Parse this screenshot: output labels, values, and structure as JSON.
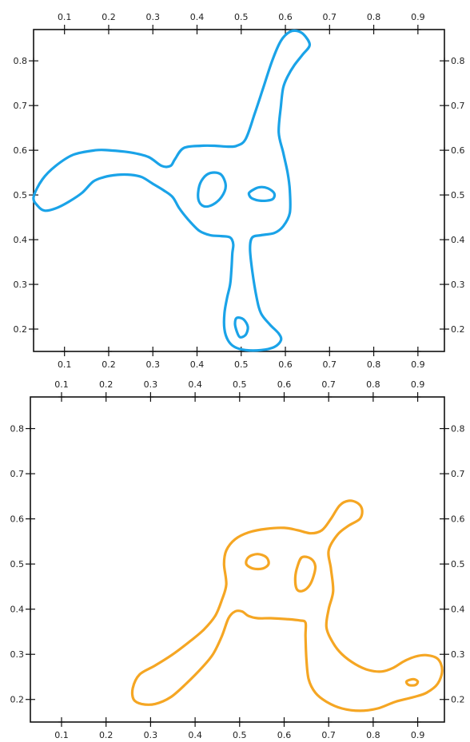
{
  "chart_data": [
    {
      "type": "contour",
      "title": "",
      "xlabel": "",
      "ylabel": "",
      "xlim": [
        0.03,
        0.96
      ],
      "ylim": [
        0.15,
        0.87
      ],
      "x_ticks": [
        "0.1",
        "0.2",
        "0.3",
        "0.4",
        "0.5",
        "0.6",
        "0.7",
        "0.8",
        "0.9"
      ],
      "y_ticks": [
        "0.2",
        "0.3",
        "0.4",
        "0.5",
        "0.6",
        "0.7",
        "0.8"
      ],
      "grid": false,
      "color": "#1aa3e8",
      "series": [
        {
          "kind": "outer",
          "points": [
            [
              0.03,
              0.495
            ],
            [
              0.05,
              0.535
            ],
            [
              0.08,
              0.565
            ],
            [
              0.12,
              0.59
            ],
            [
              0.17,
              0.6
            ],
            [
              0.2,
              0.6
            ],
            [
              0.25,
              0.595
            ],
            [
              0.29,
              0.585
            ],
            [
              0.32,
              0.565
            ],
            [
              0.34,
              0.565
            ],
            [
              0.35,
              0.58
            ],
            [
              0.37,
              0.605
            ],
            [
              0.41,
              0.61
            ],
            [
              0.44,
              0.61
            ],
            [
              0.47,
              0.608
            ],
            [
              0.49,
              0.61
            ],
            [
              0.51,
              0.625
            ],
            [
              0.53,
              0.68
            ],
            [
              0.55,
              0.74
            ],
            [
              0.57,
              0.8
            ],
            [
              0.59,
              0.845
            ],
            [
              0.61,
              0.865
            ],
            [
              0.63,
              0.866
            ],
            [
              0.645,
              0.855
            ],
            [
              0.655,
              0.835
            ],
            [
              0.64,
              0.815
            ],
            [
              0.62,
              0.79
            ],
            [
              0.605,
              0.765
            ],
            [
              0.595,
              0.74
            ],
            [
              0.59,
              0.7
            ],
            [
              0.585,
              0.64
            ],
            [
              0.595,
              0.595
            ],
            [
              0.605,
              0.55
            ],
            [
              0.61,
              0.51
            ],
            [
              0.61,
              0.46
            ],
            [
              0.595,
              0.43
            ],
            [
              0.575,
              0.415
            ],
            [
              0.545,
              0.41
            ],
            [
              0.525,
              0.405
            ],
            [
              0.52,
              0.38
            ],
            [
              0.525,
              0.33
            ],
            [
              0.535,
              0.27
            ],
            [
              0.545,
              0.235
            ],
            [
              0.565,
              0.21
            ],
            [
              0.585,
              0.19
            ],
            [
              0.59,
              0.175
            ],
            [
              0.575,
              0.16
            ],
            [
              0.545,
              0.153
            ],
            [
              0.51,
              0.153
            ],
            [
              0.485,
              0.16
            ],
            [
              0.47,
              0.175
            ],
            [
              0.462,
              0.2
            ],
            [
              0.462,
              0.235
            ],
            [
              0.468,
              0.27
            ],
            [
              0.475,
              0.3
            ],
            [
              0.478,
              0.335
            ],
            [
              0.48,
              0.37
            ],
            [
              0.482,
              0.39
            ],
            [
              0.475,
              0.405
            ],
            [
              0.455,
              0.408
            ],
            [
              0.43,
              0.41
            ],
            [
              0.405,
              0.42
            ],
            [
              0.38,
              0.445
            ],
            [
              0.36,
              0.47
            ],
            [
              0.345,
              0.495
            ],
            [
              0.325,
              0.51
            ],
            [
              0.3,
              0.525
            ],
            [
              0.275,
              0.54
            ],
            [
              0.25,
              0.545
            ],
            [
              0.22,
              0.545
            ],
            [
              0.19,
              0.54
            ],
            [
              0.165,
              0.53
            ],
            [
              0.14,
              0.505
            ],
            [
              0.11,
              0.485
            ],
            [
              0.08,
              0.47
            ],
            [
              0.055,
              0.465
            ],
            [
              0.04,
              0.475
            ],
            [
              0.03,
              0.495
            ]
          ]
        },
        {
          "kind": "hole",
          "points": [
            [
              0.435,
              0.55
            ],
            [
              0.455,
              0.545
            ],
            [
              0.465,
              0.52
            ],
            [
              0.455,
              0.495
            ],
            [
              0.435,
              0.478
            ],
            [
              0.415,
              0.475
            ],
            [
              0.403,
              0.49
            ],
            [
              0.405,
              0.52
            ],
            [
              0.418,
              0.542
            ],
            [
              0.435,
              0.55
            ]
          ]
        },
        {
          "kind": "hole",
          "points": [
            [
              0.52,
              0.507
            ],
            [
              0.54,
              0.517
            ],
            [
              0.56,
              0.515
            ],
            [
              0.575,
              0.503
            ],
            [
              0.57,
              0.49
            ],
            [
              0.545,
              0.487
            ],
            [
              0.525,
              0.492
            ],
            [
              0.518,
              0.5
            ],
            [
              0.52,
              0.507
            ]
          ]
        },
        {
          "kind": "hole",
          "points": [
            [
              0.49,
              0.225
            ],
            [
              0.505,
              0.222
            ],
            [
              0.515,
              0.205
            ],
            [
              0.51,
              0.187
            ],
            [
              0.497,
              0.182
            ],
            [
              0.49,
              0.195
            ],
            [
              0.486,
              0.212
            ],
            [
              0.49,
              0.225
            ]
          ]
        }
      ]
    },
    {
      "type": "contour",
      "title": "",
      "xlabel": "",
      "ylabel": "",
      "xlim": [
        0.03,
        0.96
      ],
      "ylim": [
        0.15,
        0.87
      ],
      "x_ticks": [
        "0.1",
        "0.2",
        "0.3",
        "0.4",
        "0.5",
        "0.6",
        "0.7",
        "0.8",
        "0.9"
      ],
      "y_ticks": [
        "0.2",
        "0.3",
        "0.4",
        "0.5",
        "0.6",
        "0.7",
        "0.8"
      ],
      "grid": false,
      "color": "#f5a623",
      "series": [
        {
          "kind": "outer",
          "points": [
            [
              0.26,
              0.225
            ],
            [
              0.275,
              0.255
            ],
            [
              0.31,
              0.275
            ],
            [
              0.35,
              0.3
            ],
            [
              0.39,
              0.33
            ],
            [
              0.42,
              0.355
            ],
            [
              0.445,
              0.385
            ],
            [
              0.46,
              0.42
            ],
            [
              0.47,
              0.455
            ],
            [
              0.465,
              0.5
            ],
            [
              0.47,
              0.53
            ],
            [
              0.49,
              0.555
            ],
            [
              0.52,
              0.57
            ],
            [
              0.56,
              0.578
            ],
            [
              0.6,
              0.58
            ],
            [
              0.63,
              0.575
            ],
            [
              0.66,
              0.568
            ],
            [
              0.685,
              0.575
            ],
            [
              0.705,
              0.6
            ],
            [
              0.725,
              0.63
            ],
            [
              0.745,
              0.64
            ],
            [
              0.765,
              0.635
            ],
            [
              0.775,
              0.62
            ],
            [
              0.77,
              0.6
            ],
            [
              0.745,
              0.585
            ],
            [
              0.72,
              0.565
            ],
            [
              0.7,
              0.53
            ],
            [
              0.705,
              0.49
            ],
            [
              0.71,
              0.44
            ],
            [
              0.7,
              0.4
            ],
            [
              0.695,
              0.36
            ],
            [
              0.71,
              0.325
            ],
            [
              0.73,
              0.3
            ],
            [
              0.76,
              0.278
            ],
            [
              0.79,
              0.265
            ],
            [
              0.82,
              0.262
            ],
            [
              0.845,
              0.27
            ],
            [
              0.87,
              0.285
            ],
            [
              0.895,
              0.295
            ],
            [
              0.92,
              0.298
            ],
            [
              0.945,
              0.29
            ],
            [
              0.955,
              0.265
            ],
            [
              0.945,
              0.235
            ],
            [
              0.92,
              0.215
            ],
            [
              0.89,
              0.205
            ],
            [
              0.85,
              0.195
            ],
            [
              0.81,
              0.18
            ],
            [
              0.77,
              0.175
            ],
            [
              0.73,
              0.18
            ],
            [
              0.695,
              0.195
            ],
            [
              0.67,
              0.215
            ],
            [
              0.655,
              0.245
            ],
            [
              0.65,
              0.29
            ],
            [
              0.648,
              0.34
            ],
            [
              0.648,
              0.37
            ],
            [
              0.635,
              0.375
            ],
            [
              0.605,
              0.378
            ],
            [
              0.57,
              0.38
            ],
            [
              0.54,
              0.38
            ],
            [
              0.52,
              0.385
            ],
            [
              0.505,
              0.395
            ],
            [
              0.49,
              0.395
            ],
            [
              0.475,
              0.38
            ],
            [
              0.46,
              0.34
            ],
            [
              0.44,
              0.3
            ],
            [
              0.415,
              0.27
            ],
            [
              0.38,
              0.235
            ],
            [
              0.345,
              0.205
            ],
            [
              0.31,
              0.19
            ],
            [
              0.28,
              0.19
            ],
            [
              0.262,
              0.2
            ],
            [
              0.26,
              0.225
            ]
          ]
        },
        {
          "kind": "hole",
          "points": [
            [
              0.52,
              0.515
            ],
            [
              0.54,
              0.522
            ],
            [
              0.56,
              0.515
            ],
            [
              0.565,
              0.5
            ],
            [
              0.552,
              0.49
            ],
            [
              0.53,
              0.49
            ],
            [
              0.515,
              0.5
            ],
            [
              0.52,
              0.515
            ]
          ]
        },
        {
          "kind": "hole",
          "points": [
            [
              0.64,
              0.515
            ],
            [
              0.66,
              0.512
            ],
            [
              0.67,
              0.495
            ],
            [
              0.665,
              0.47
            ],
            [
              0.655,
              0.45
            ],
            [
              0.64,
              0.44
            ],
            [
              0.628,
              0.445
            ],
            [
              0.625,
              0.47
            ],
            [
              0.63,
              0.495
            ],
            [
              0.64,
              0.515
            ]
          ]
        },
        {
          "kind": "hole",
          "points": [
            [
              0.875,
              0.24
            ],
            [
              0.89,
              0.245
            ],
            [
              0.9,
              0.24
            ],
            [
              0.895,
              0.232
            ],
            [
              0.88,
              0.232
            ],
            [
              0.875,
              0.24
            ]
          ]
        }
      ]
    }
  ]
}
